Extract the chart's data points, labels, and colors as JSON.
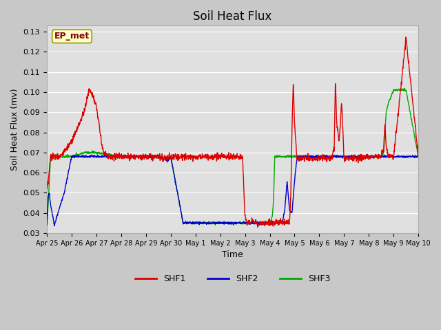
{
  "title": "Soil Heat Flux",
  "xlabel": "Time",
  "ylabel": "Soil Heat Flux (mv)",
  "ylim": [
    0.03,
    0.133
  ],
  "yticks": [
    0.03,
    0.04,
    0.05,
    0.06,
    0.07,
    0.08,
    0.09,
    0.1,
    0.11,
    0.12,
    0.13
  ],
  "fig_bg_color": "#c8c8c8",
  "plot_bg_color": "#e0e0e0",
  "grid_color": "#ffffff",
  "shf1_color": "#dd0000",
  "shf2_color": "#0000cc",
  "shf3_color": "#00aa00",
  "legend_label": "EP_met",
  "legend_box_facecolor": "#ffffcc",
  "legend_box_edgecolor": "#999900",
  "line_width": 1.0,
  "xtick_labels": [
    "Apr 25",
    "Apr 26",
    "Apr 27",
    "Apr 28",
    "Apr 29",
    "Apr 30",
    "May 1",
    "May 2",
    "May 3",
    "May 4",
    "May 5",
    "May 6",
    "May 7",
    "May 8",
    "May 9",
    "May 10"
  ],
  "title_fontsize": 12,
  "axis_label_fontsize": 9,
  "tick_fontsize": 8
}
